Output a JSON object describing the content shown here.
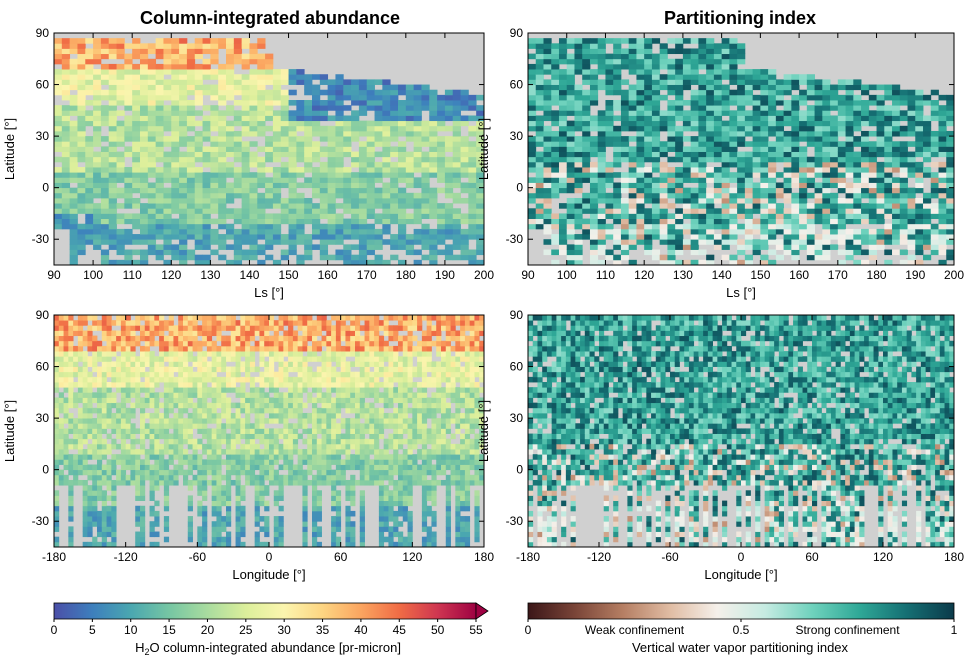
{
  "panel_titles": {
    "left": "Column-integrated abundance",
    "right": "Partitioning index"
  },
  "axis_labels": {
    "latitude": "Latitude [°]",
    "ls": "Ls [°]",
    "longitude": "Longitude [°]"
  },
  "colorbars": {
    "abundance": {
      "label_pre": "H",
      "label_sub": "2",
      "label_post": "O column-integrated abundance [pr-micron]",
      "ticks": [
        "0",
        "5",
        "10",
        "15",
        "20",
        "25",
        "30",
        "35",
        "40",
        "45",
        "50",
        "55"
      ],
      "range": [
        0,
        55
      ],
      "extend": "max"
    },
    "partition": {
      "label": "Vertical water vapor partitioning index",
      "ticks": [
        "0",
        "0.5",
        "1"
      ],
      "annotations": [
        "Weak confinement",
        "Strong confinement"
      ],
      "range": [
        0,
        1
      ]
    }
  },
  "colors": {
    "missing": "#d0d0d0",
    "abundance_map": [
      "#4b4fa8",
      "#3d7fbd",
      "#4aa7b0",
      "#76c6a3",
      "#a9dc9f",
      "#dcef9b",
      "#fbf5ae",
      "#fdd582",
      "#fba560",
      "#f06c45",
      "#cf3651",
      "#9e0142"
    ],
    "partition_map": [
      "#3b1618",
      "#7a4538",
      "#b57e63",
      "#e0bca3",
      "#f5f0ea",
      "#c6ebe2",
      "#6fd2bd",
      "#2fa897",
      "#156f73",
      "#0b3a4a"
    ]
  },
  "chart_data": [
    {
      "type": "heatmap",
      "title": "Column-integrated abundance",
      "xlabel": "Ls [°]",
      "ylabel": "Latitude [°]",
      "x_ticks": [
        "90",
        "100",
        "110",
        "120",
        "130",
        "140",
        "150",
        "160",
        "170",
        "180",
        "190",
        "200"
      ],
      "y_ticks": [
        "90",
        "60",
        "30",
        "0",
        "-30"
      ],
      "xlim": [
        90,
        200
      ],
      "ylim": [
        -45,
        90
      ],
      "colorscale": "abundance",
      "value_range": [
        0,
        55
      ],
      "trend": "High abundance (35–50 pr-µm) near 75–88°N for Ls 90–125, decreasing toward the south (10–20 pr-µm); low values (0–10) at 50–70°N after Ls 160; data coverage shrinks northward edge with season"
    },
    {
      "type": "heatmap",
      "title": "Partitioning index",
      "xlabel": "Ls [°]",
      "ylabel": "Latitude [°]",
      "x_ticks": [
        "90",
        "100",
        "110",
        "120",
        "130",
        "140",
        "150",
        "160",
        "170",
        "180",
        "190",
        "200"
      ],
      "y_ticks": [
        "90",
        "60",
        "30",
        "0",
        "-30"
      ],
      "xlim": [
        90,
        200
      ],
      "ylim": [
        -45,
        90
      ],
      "colorscale": "partition",
      "value_range": [
        0,
        1
      ],
      "trend": "Mostly strong confinement (0.7–0.95) across the domain; weak confinement (0.2–0.45) patches near the equator and southern latitudes"
    },
    {
      "type": "heatmap",
      "xlabel": "Longitude [°]",
      "ylabel": "Latitude [°]",
      "x_ticks": [
        "-180",
        "-120",
        "-60",
        "0",
        "60",
        "120",
        "180"
      ],
      "y_ticks": [
        "90",
        "60",
        "30",
        "0",
        "-30"
      ],
      "xlim": [
        -180,
        180
      ],
      "ylim": [
        -45,
        90
      ],
      "colorscale": "abundance",
      "value_range": [
        0,
        55
      ],
      "trend": "Highest abundance (35–50) along 70–88°N at all longitudes, moderate (15–25) at mid latitudes, low (5–12) at southern edge"
    },
    {
      "type": "heatmap",
      "xlabel": "Longitude [°]",
      "ylabel": "Latitude [°]",
      "x_ticks": [
        "-180",
        "-120",
        "-60",
        "0",
        "60",
        "120",
        "180"
      ],
      "y_ticks": [
        "90",
        "60",
        "30",
        "0",
        "-30"
      ],
      "xlim": [
        -180,
        180
      ],
      "ylim": [
        -45,
        90
      ],
      "colorscale": "partition",
      "value_range": [
        0,
        1
      ],
      "trend": "Strong confinement (0.8–0.95) around -150 to -90 and 90 to 150 longitude; mixed weak confinement (0.3–0.5) in southern tropics"
    }
  ]
}
